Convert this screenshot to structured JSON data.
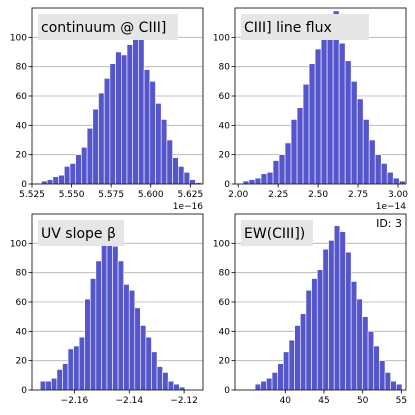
{
  "figure": {
    "id_label": "ID: 3"
  },
  "style": {
    "bar_color": "#5555cc",
    "bar_edge": "#ffffff",
    "title_box": "#e6e6e6",
    "grid_color": "#b0b0b0"
  },
  "chart_data": [
    {
      "type": "bar",
      "title": "continuum @ CIII]",
      "xlabel": "",
      "ylabel": "",
      "x_scale_label": "1e−16",
      "x_range": [
        5.525,
        5.633
      ],
      "ylim": [
        0,
        120
      ],
      "x_ticks": [
        5.525,
        5.55,
        5.575,
        5.6,
        5.625
      ],
      "x_tick_labels": [
        "5.525",
        "5.550",
        "5.575",
        "5.600",
        "5.625"
      ],
      "y_ticks": [
        0,
        20,
        40,
        60,
        80,
        100
      ],
      "y_tick_labels": [
        "0",
        "20",
        "40",
        "60",
        "80",
        "100"
      ],
      "grid": "y",
      "bin_start": 5.531,
      "bin_width": 0.0036,
      "counts": [
        2,
        3,
        5,
        6,
        12,
        14,
        20,
        25,
        38,
        51,
        62,
        72,
        82,
        90,
        88,
        95,
        102,
        112,
        78,
        70,
        55,
        44,
        30,
        18,
        12,
        8,
        3,
        1
      ]
    },
    {
      "type": "bar",
      "title": "CIII] line flux",
      "xlabel": "",
      "ylabel": "",
      "x_scale_label": "1e−14",
      "x_range": [
        1.98,
        3.05
      ],
      "ylim": [
        0,
        120
      ],
      "x_ticks": [
        2.0,
        2.25,
        2.5,
        2.75,
        3.0
      ],
      "x_tick_labels": [
        "2.00",
        "2.25",
        "2.50",
        "2.75",
        "3.00"
      ],
      "y_ticks": [
        0,
        20,
        40,
        60,
        80,
        100
      ],
      "y_tick_labels": [
        "0",
        "20",
        "40",
        "60",
        "80",
        "100"
      ],
      "grid": "y",
      "bin_start": 2.03,
      "bin_width": 0.0376,
      "counts": [
        2,
        3,
        4,
        7,
        8,
        16,
        20,
        28,
        44,
        52,
        68,
        82,
        92,
        100,
        104,
        118,
        96,
        84,
        70,
        58,
        44,
        30,
        20,
        14,
        8,
        4,
        2
      ]
    },
    {
      "type": "bar",
      "title": "UV slope β",
      "xlabel": "",
      "ylabel": "",
      "x_scale_label": "",
      "x_range": [
        -2.1755,
        -2.1131
      ],
      "ylim": [
        0,
        120
      ],
      "x_ticks": [
        -2.16,
        -2.14,
        -2.12
      ],
      "x_tick_labels": [
        "−2.16",
        "−2.14",
        "−2.12"
      ],
      "y_ticks": [
        0,
        20,
        40,
        60,
        80,
        100
      ],
      "y_tick_labels": [
        "0",
        "20",
        "40",
        "60",
        "80",
        "100"
      ],
      "grid": "y",
      "bin_start": -2.1725,
      "bin_width": 0.00203,
      "counts": [
        6,
        6,
        8,
        14,
        18,
        28,
        30,
        36,
        62,
        76,
        88,
        104,
        112,
        98,
        88,
        72,
        68,
        56,
        44,
        36,
        26,
        16,
        12,
        6,
        4,
        2
      ]
    },
    {
      "type": "bar",
      "title": "EW(CIII])",
      "xlabel": "",
      "ylabel": "",
      "x_scale_label": "",
      "x_range": [
        33.5,
        55.6
      ],
      "ylim": [
        0,
        120
      ],
      "x_ticks": [
        40,
        45,
        50,
        55
      ],
      "x_tick_labels": [
        "40",
        "45",
        "50",
        "55"
      ],
      "y_ticks": [
        0,
        20,
        40,
        60,
        80,
        100
      ],
      "y_tick_labels": [
        "0",
        "20",
        "40",
        "60",
        "80",
        "100"
      ],
      "grid": "y",
      "bin_start": 36.1,
      "bin_width": 0.73,
      "counts": [
        4,
        6,
        8,
        12,
        18,
        26,
        34,
        44,
        52,
        68,
        76,
        82,
        96,
        102,
        112,
        108,
        94,
        74,
        62,
        50,
        40,
        30,
        20,
        12,
        6,
        4,
        0,
        0,
        0,
        0,
        0,
        2
      ]
    }
  ]
}
